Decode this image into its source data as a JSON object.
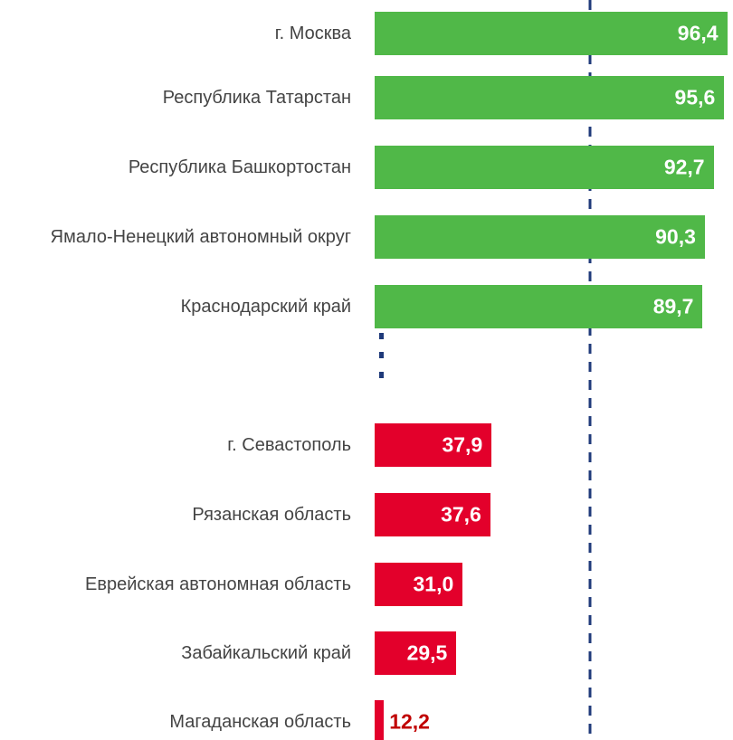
{
  "chart_data": [
    {
      "type": "bar",
      "orientation": "horizontal",
      "color": "#50b848",
      "categories": [
        "г. Москва",
        "Республика Татарстан",
        "Республика Башкортостан",
        "Ямало-Ненецкий автономный округ",
        "Краснодарский край"
      ],
      "values": [
        96.4,
        95.6,
        92.7,
        90.3,
        89.7
      ],
      "value_labels": [
        "96,4",
        "95,6",
        "92,7",
        "90,3",
        "89,7"
      ],
      "xlim": [
        0,
        98
      ]
    },
    {
      "type": "bar",
      "orientation": "horizontal",
      "color": "#e3002b",
      "categories": [
        "г. Севастополь",
        "Рязанская область",
        "Еврейская автономная область",
        "Забайкальский край",
        "Магаданская область"
      ],
      "values": [
        37.9,
        37.6,
        31.0,
        29.5,
        12.2
      ],
      "value_labels": [
        "37,9",
        "37,6",
        "31,0",
        "29,5",
        "12,2"
      ],
      "xlim": [
        10,
        95.5
      ]
    }
  ]
}
